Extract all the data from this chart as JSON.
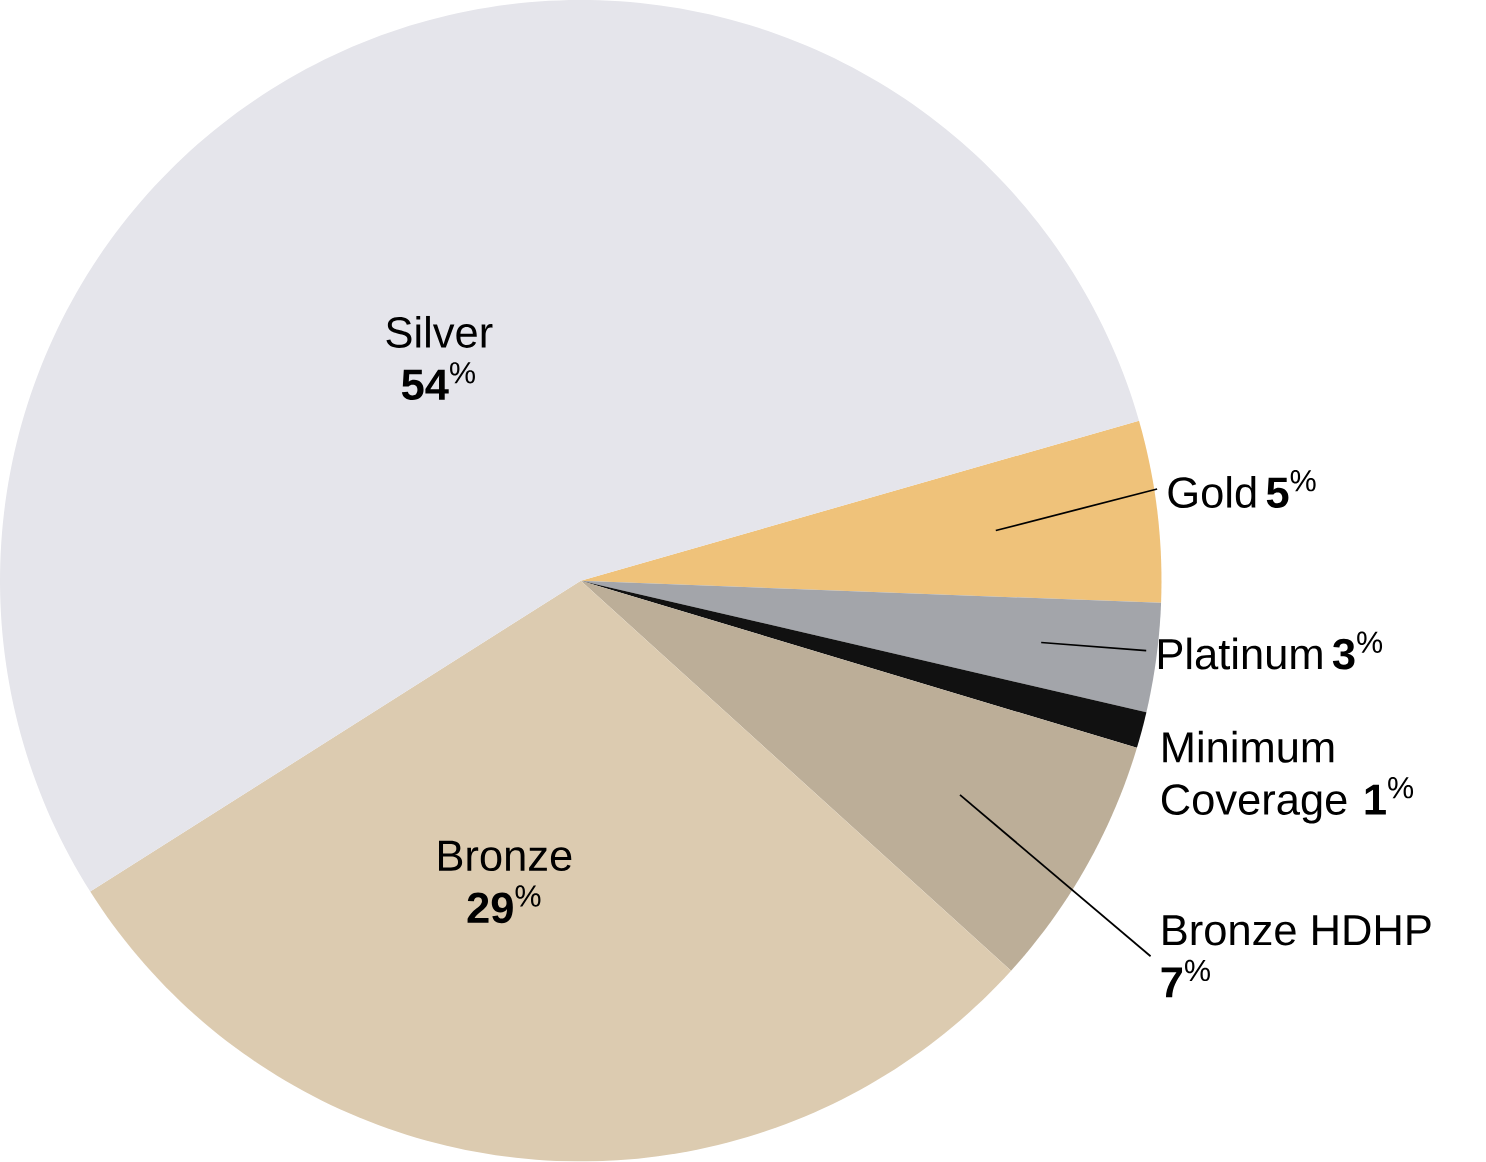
{
  "chart_data": {
    "type": "pie",
    "categories": [
      "Gold",
      "Platinum",
      "Minimum Coverage",
      "Bronze HDHP",
      "Bronze",
      "Silver"
    ],
    "values": [
      5,
      3,
      1,
      7,
      29,
      54
    ],
    "colors": [
      "#efc27a",
      "#a3a5aa",
      "#111111",
      "#bcae98",
      "#dccbb0",
      "#e5e5eb"
    ],
    "value_labels": [
      "**5**$^{%}$",
      "**3**$^{%}$",
      "**1**$^{%}$",
      "**7**$^{%}$",
      "**29**$^{%}$",
      "**54**$^{%}$"
    ]
  }
}
